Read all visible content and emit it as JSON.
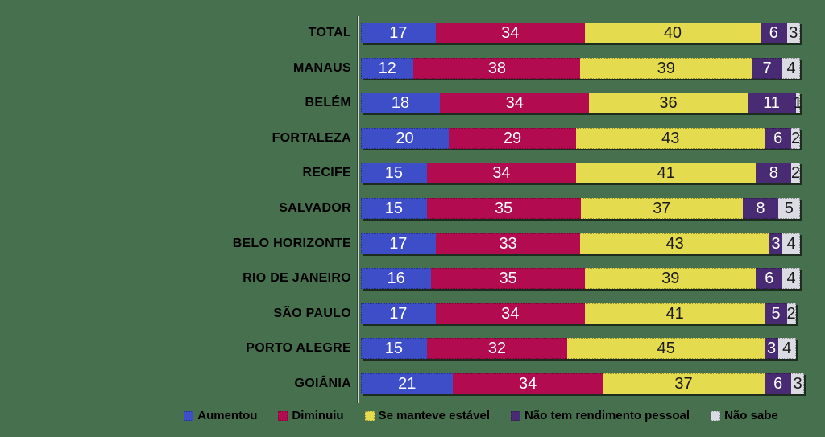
{
  "chart_data": {
    "type": "bar",
    "orientation": "horizontal",
    "stacked": true,
    "unit": "%",
    "title": "",
    "xlabel": "",
    "ylabel": "",
    "xlim": [
      0,
      100
    ],
    "grid": false,
    "legend_position": "bottom",
    "background_color": "#47704F",
    "axis_line_color": "#d4d4d4",
    "categories": [
      "TOTAL",
      "MANAUS",
      "BELÉM",
      "FORTALEZA",
      "RECIFE",
      "SALVADOR",
      "BELO HORIZONTE",
      "RIO DE JANEIRO",
      "SÃO PAULO",
      "PORTO ALEGRE",
      "GOIÂNIA"
    ],
    "series": [
      {
        "name": "Aumentou",
        "color": "#3D4EC8",
        "text_color": "#FFFFFF",
        "values": [
          17,
          12,
          18,
          20,
          15,
          15,
          17,
          16,
          17,
          15,
          21
        ]
      },
      {
        "name": "Diminuiu",
        "color": "#B20B50",
        "text_color": "#FFFFFF",
        "values": [
          34,
          38,
          34,
          29,
          34,
          35,
          33,
          35,
          34,
          32,
          34
        ]
      },
      {
        "name": "Se manteve estável",
        "color": "#E4DB4E",
        "text_color": "#1A1A1A",
        "values": [
          40,
          39,
          36,
          43,
          41,
          37,
          43,
          39,
          41,
          45,
          37
        ]
      },
      {
        "name": "Não tem rendimento pessoal",
        "color": "#482B72",
        "text_color": "#FFFFFF",
        "values": [
          6,
          7,
          11,
          6,
          8,
          8,
          3,
          6,
          5,
          3,
          6
        ]
      },
      {
        "name": "Não sabe",
        "color": "#DBDBE4",
        "text_color": "#1A1A1A",
        "values": [
          3,
          4,
          1,
          2,
          2,
          5,
          4,
          4,
          2,
          4,
          3
        ]
      }
    ]
  }
}
